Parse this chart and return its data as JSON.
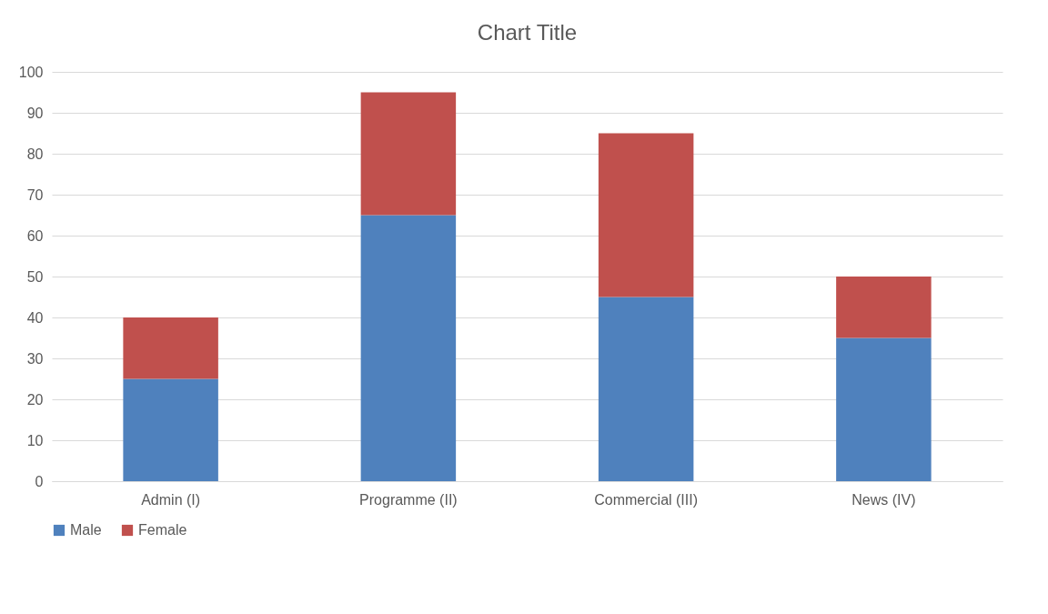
{
  "chart_data": {
    "type": "bar",
    "title": "Chart Title",
    "categories": [
      "Admin (I)",
      "Programme (II)",
      "Commercial (III)",
      "News (IV)"
    ],
    "series": [
      {
        "name": "Male",
        "color": "#4f81bd",
        "values": [
          25,
          65,
          45,
          35
        ]
      },
      {
        "name": "Female",
        "color": "#c0504d",
        "values": [
          15,
          30,
          40,
          15
        ]
      }
    ],
    "stacked": true,
    "ylim": [
      0,
      100
    ],
    "yticks": [
      0,
      10,
      20,
      30,
      40,
      50,
      60,
      70,
      80,
      90,
      100
    ],
    "grid": "y",
    "legend": "bottom"
  }
}
